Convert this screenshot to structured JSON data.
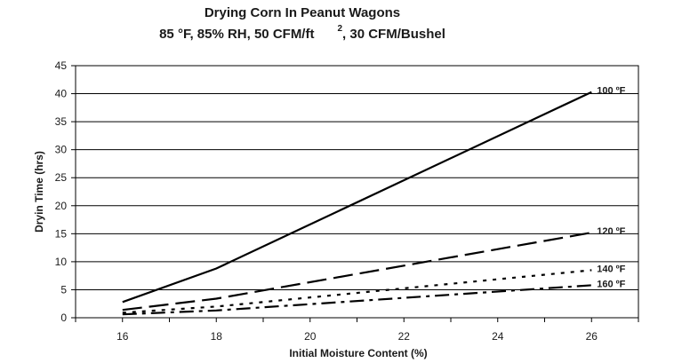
{
  "chart_data": {
    "type": "line",
    "title": "Drying Corn In Peanut Wagons",
    "subtitle": "85 °F, 85% RH, 50 CFM/ft",
    "subtitle_superscript": "2",
    "subtitle_suffix": ", 30 CFM/Bushel",
    "xlabel": "Initial Moisture Content (%)",
    "ylabel": "Dryin Time (hrs)",
    "xlim": [
      15,
      27
    ],
    "ylim": [
      0,
      45
    ],
    "x_ticks": [
      "16",
      "18",
      "20",
      "22",
      "24",
      "26"
    ],
    "y_ticks": [
      "0",
      "5",
      "10",
      "15",
      "20",
      "25",
      "30",
      "35",
      "40",
      "45"
    ],
    "grid": "horizontal",
    "series": [
      {
        "name": "100 ºF",
        "style": "solid",
        "points": [
          [
            16,
            2.8
          ],
          [
            18,
            8.8
          ],
          [
            26,
            40.3
          ]
        ]
      },
      {
        "name": "120 ºF",
        "style": "long-dash",
        "points": [
          [
            16,
            1.4
          ],
          [
            18,
            3.4
          ],
          [
            26,
            15.2
          ]
        ]
      },
      {
        "name": "140 ºF",
        "style": "dotted",
        "points": [
          [
            16,
            0.9
          ],
          [
            18,
            2.0
          ],
          [
            26,
            8.5
          ]
        ]
      },
      {
        "name": "160 ºF",
        "style": "dash-dot",
        "points": [
          [
            16,
            0.6
          ],
          [
            18,
            1.3
          ],
          [
            26,
            5.8
          ]
        ]
      }
    ]
  }
}
